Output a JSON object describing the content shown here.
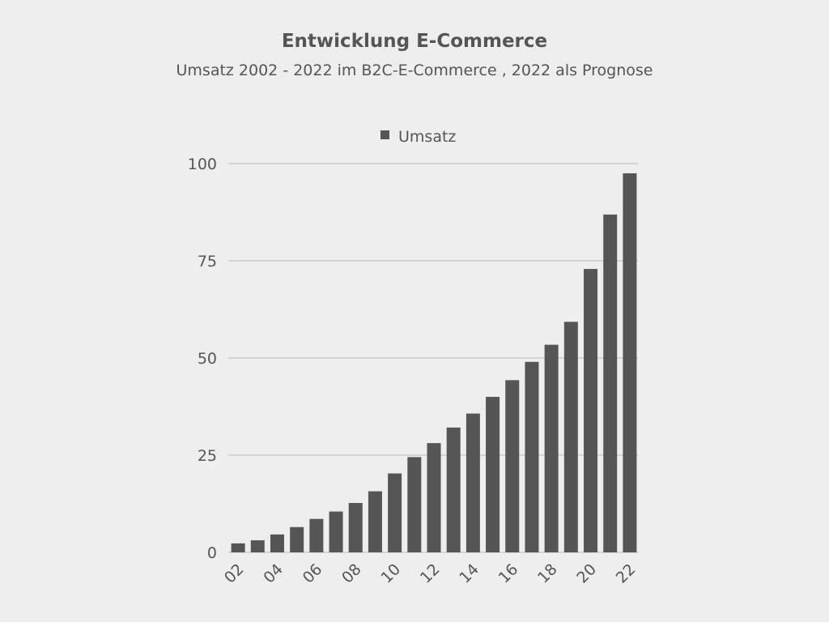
{
  "chart_data": {
    "type": "bar",
    "title": "Entwicklung E-Commerce",
    "subtitle": "Umsatz 2002 - 2022 im B2C-E-Commerce , 2022 als Prognose",
    "xlabel": "",
    "ylabel": "",
    "categories": [
      "02",
      "03",
      "04",
      "05",
      "06",
      "07",
      "08",
      "09",
      "10",
      "11",
      "12",
      "13",
      "14",
      "15",
      "16",
      "17",
      "18",
      "19",
      "20",
      "21",
      "22"
    ],
    "x_tick_labels": [
      "02",
      "04",
      "06",
      "08",
      "10",
      "12",
      "14",
      "16",
      "18",
      "20",
      "22"
    ],
    "series": [
      {
        "name": "Umsatz",
        "color": "#555555",
        "values": [
          2.3,
          3.1,
          4.6,
          6.5,
          8.6,
          10.5,
          12.7,
          15.7,
          20.3,
          24.5,
          28.1,
          32.1,
          35.7,
          40.0,
          44.3,
          49.0,
          53.4,
          59.3,
          72.9,
          86.9,
          97.5
        ]
      }
    ],
    "ylim": [
      0,
      100
    ],
    "y_ticks": [
      "0",
      "25",
      "50",
      "75",
      "100"
    ],
    "grid": true,
    "legend": "top",
    "colors": {
      "background": "#eeeeee",
      "bar": "#555555",
      "grid": "#bbbbbb",
      "text": "#555555"
    }
  }
}
